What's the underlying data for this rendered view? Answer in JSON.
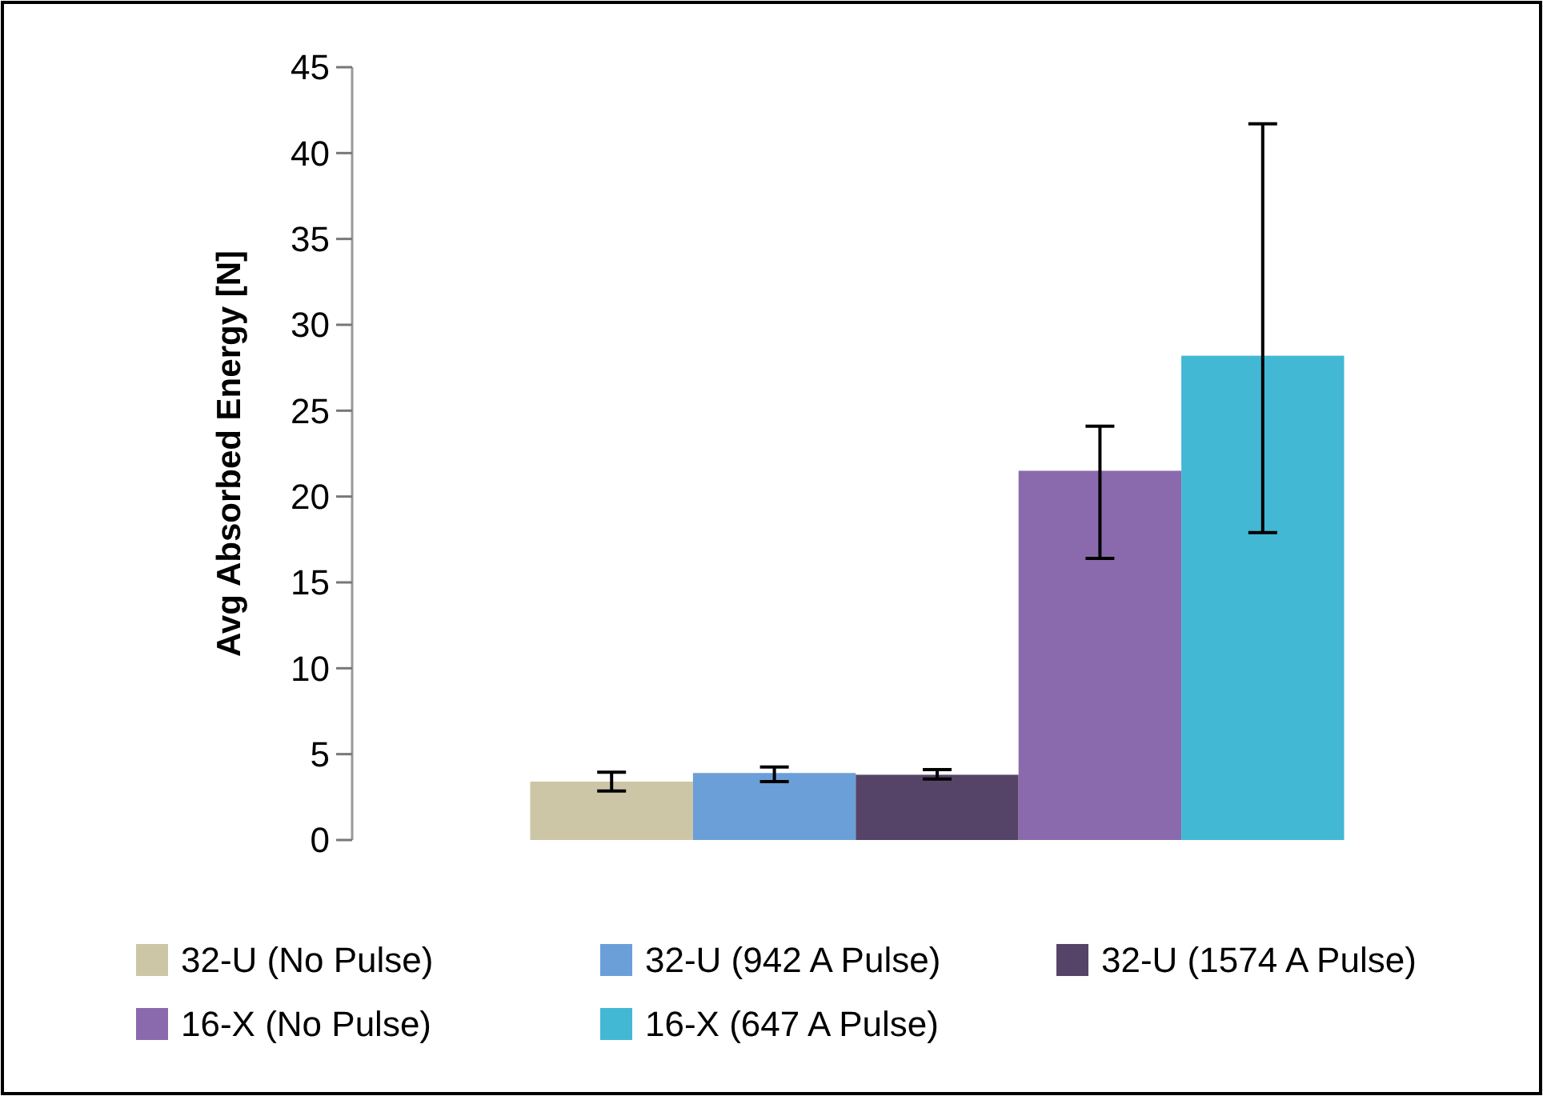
{
  "chart_data": {
    "type": "bar",
    "ylabel": "Avg Absorbed Energy [N]",
    "categories": [
      null
    ],
    "series": [
      {
        "name": "32-U (No Pulse)",
        "color": "#cdc6a6",
        "values": [
          3.4
        ],
        "errors": [
          [
            2.85,
            3.95
          ]
        ]
      },
      {
        "name": "32-U (942 A Pulse)",
        "color": "#6a9fd8",
        "values": [
          3.9
        ],
        "errors": [
          [
            3.4,
            4.25
          ]
        ]
      },
      {
        "name": "32-U (1574 A Pulse)",
        "color": "#564468",
        "values": [
          3.8
        ],
        "errors": [
          [
            3.55,
            4.1
          ]
        ]
      },
      {
        "name": "16-X (No Pulse)",
        "color": "#8a6aac",
        "values": [
          21.5
        ],
        "errors": [
          [
            16.4,
            24.1
          ]
        ]
      },
      {
        "name": "16-X (647 A Pulse)",
        "color": "#42b8d4",
        "values": [
          28.2
        ],
        "errors": [
          [
            17.9,
            41.7
          ]
        ]
      }
    ],
    "ylim": [
      0,
      45
    ],
    "yticks": [
      0,
      5,
      10,
      15,
      20,
      25,
      30,
      35,
      40,
      45
    ],
    "grid": false,
    "legend": "bottom"
  }
}
